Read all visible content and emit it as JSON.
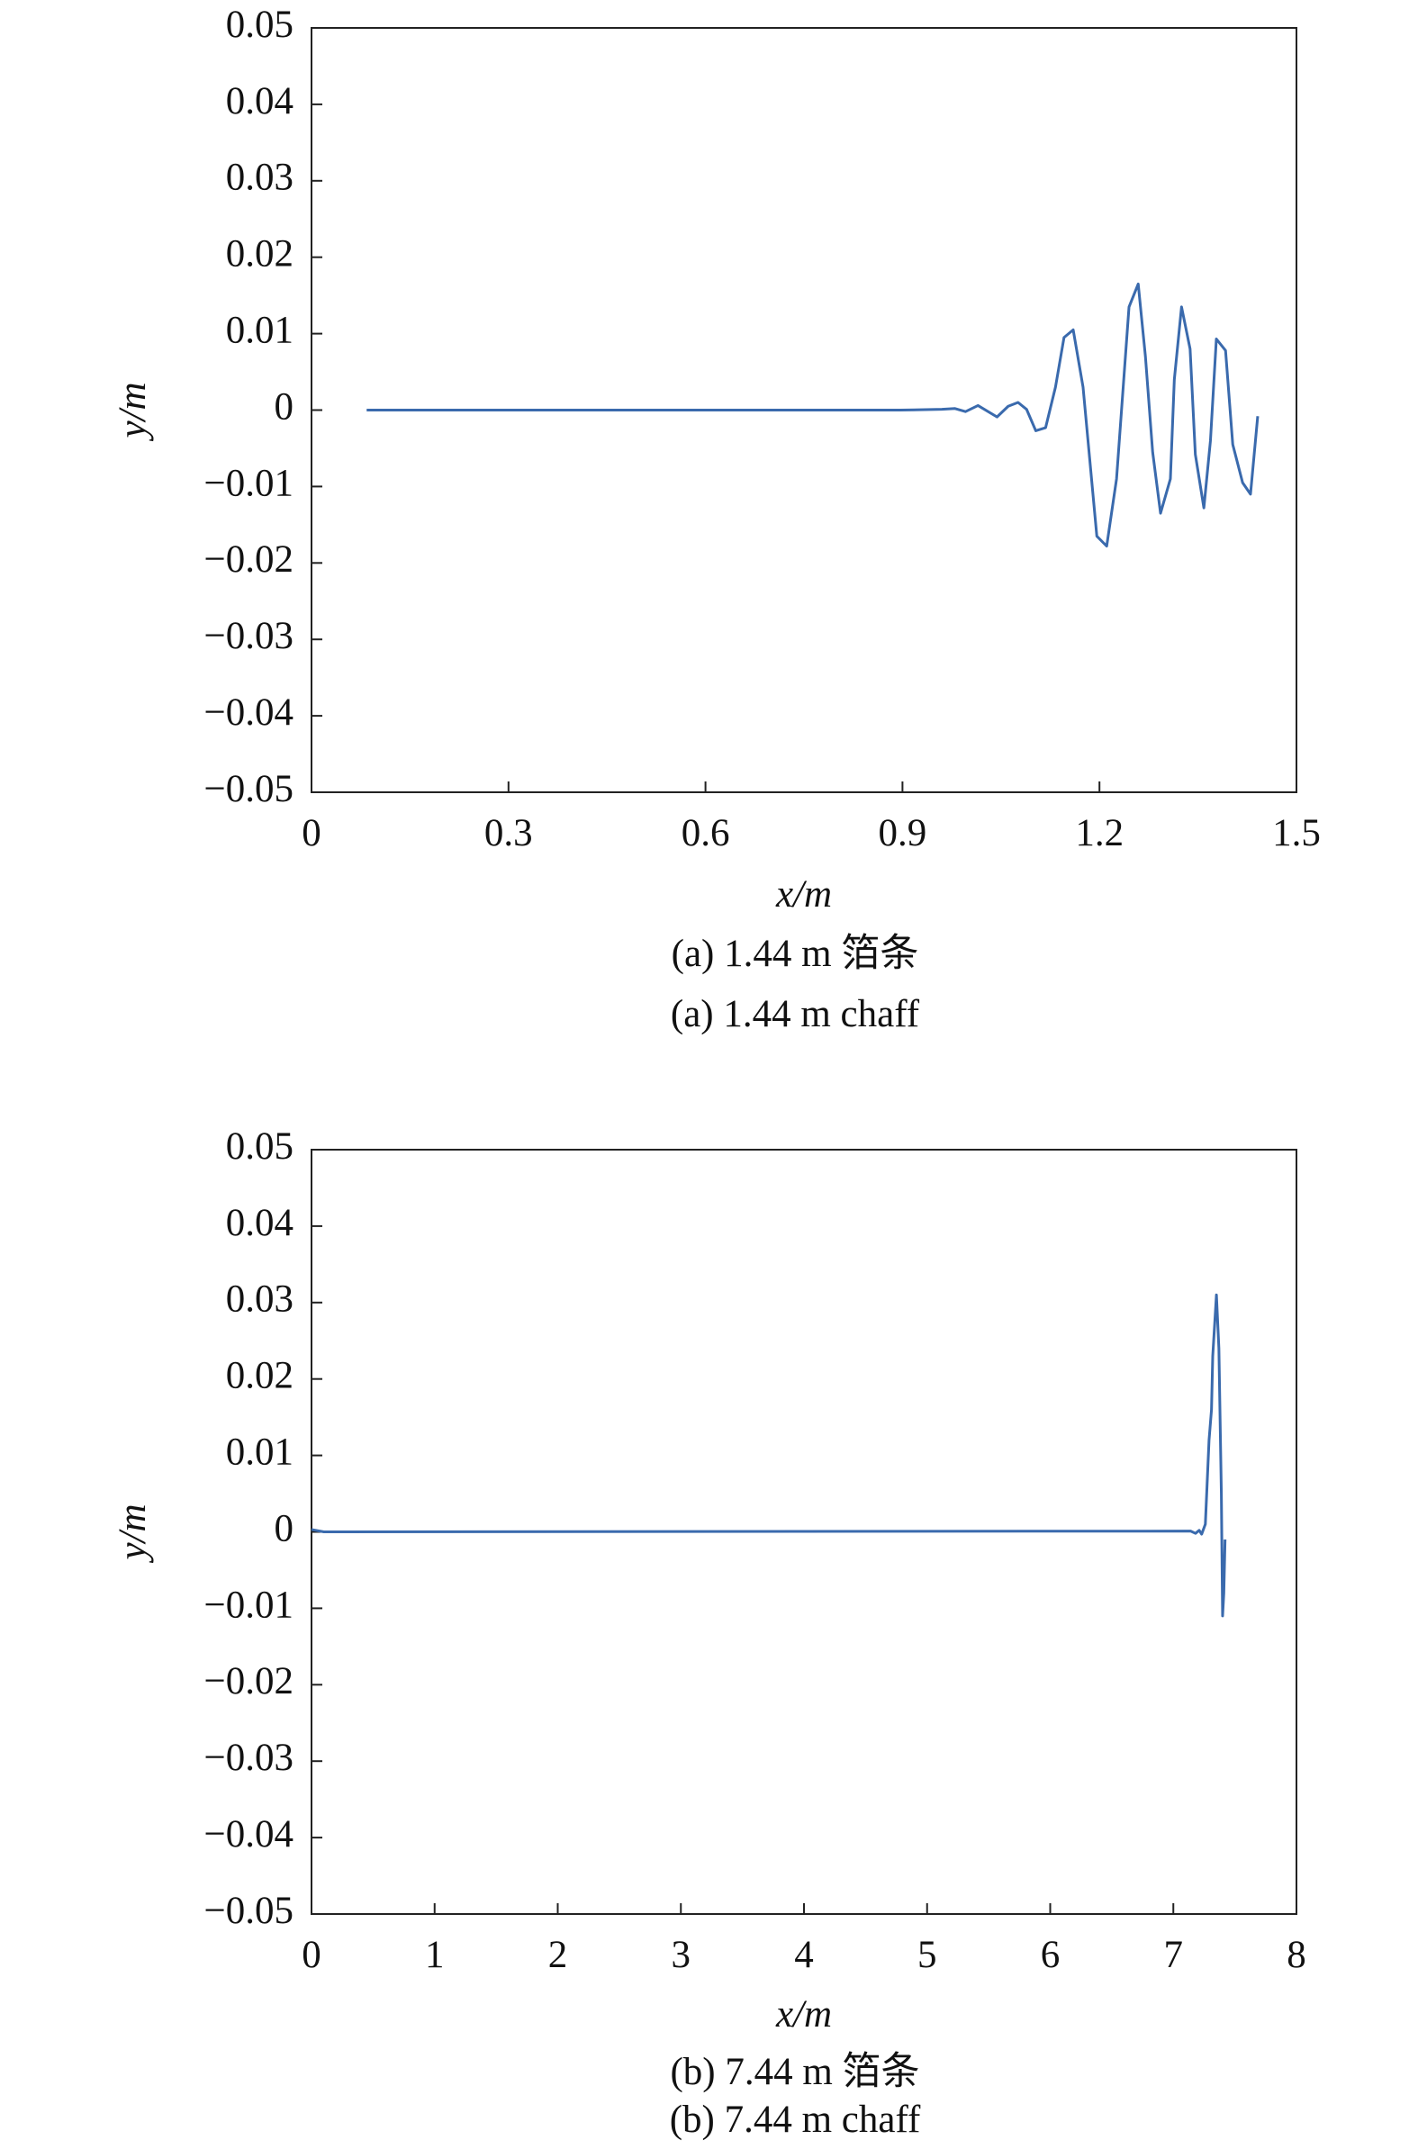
{
  "chart_data": [
    {
      "type": "line",
      "x_label": "x/m",
      "y_label": "y/m",
      "captions": [
        "(a) 1.44 m 箔条",
        "(a) 1.44 m chaff"
      ],
      "xlim": [
        0,
        1.5
      ],
      "xticks": [
        0,
        0.3,
        0.6,
        0.9,
        1.2,
        1.5
      ],
      "ylim": [
        -0.05,
        0.05
      ],
      "yticks": [
        {
          "value": -0.05,
          "label": "−0.05"
        },
        {
          "value": -0.04,
          "label": "−0.04"
        },
        {
          "value": -0.03,
          "label": "−0.03"
        },
        {
          "value": -0.02,
          "label": "−0.02"
        },
        {
          "value": -0.01,
          "label": "−0.01"
        },
        0,
        0.01,
        0.02,
        0.03,
        0.04,
        0.05
      ],
      "series": [
        {
          "color": "#3a6aad",
          "x": [
            0.084,
            0.897,
            0.96,
            0.98,
            0.996,
            1.015,
            1.044,
            1.061,
            1.076,
            1.089,
            1.103,
            1.118,
            1.133,
            1.146,
            1.16,
            1.175,
            1.196,
            1.211,
            1.226,
            1.245,
            1.259,
            1.27,
            1.281,
            1.293,
            1.308,
            1.314,
            1.325,
            1.338,
            1.346,
            1.359,
            1.369,
            1.378,
            1.392,
            1.403,
            1.418,
            1.43,
            1.441
          ],
          "values": [
            0,
            0,
            0.0001,
            0.0002,
            -0.0002,
            0.0006,
            -0.0009,
            0.0005,
            0.001,
            0.0001,
            -0.0027,
            -0.0023,
            0.003,
            0.0095,
            0.0105,
            0.003,
            -0.0165,
            -0.0178,
            -0.009,
            0.0135,
            0.0165,
            0.007,
            -0.0055,
            -0.0135,
            -0.009,
            0.004,
            0.0135,
            0.008,
            -0.0058,
            -0.0128,
            -0.004,
            0.0093,
            0.0078,
            -0.0045,
            -0.0095,
            -0.011,
            -0.0008
          ]
        }
      ]
    },
    {
      "type": "line",
      "x_label": "x/m",
      "y_label": "y/m",
      "captions": [
        "(b) 7.44 m 箔条",
        "(b) 7.44 m chaff"
      ],
      "xlim": [
        0,
        8
      ],
      "xticks": [
        0,
        1,
        2,
        3,
        4,
        5,
        6,
        7,
        8
      ],
      "ylim": [
        -0.05,
        0.05
      ],
      "yticks": [
        {
          "value": -0.05,
          "label": "−0.05"
        },
        {
          "value": -0.04,
          "label": "−0.04"
        },
        {
          "value": -0.03,
          "label": "−0.03"
        },
        {
          "value": -0.02,
          "label": "−0.02"
        },
        {
          "value": -0.01,
          "label": "−0.01"
        },
        0,
        0.01,
        0.02,
        0.03,
        0.04,
        0.05
      ],
      "series": [
        {
          "color": "#3a6aad",
          "x": [
            0,
            0.1,
            7.14,
            7.18,
            7.21,
            7.23,
            7.26,
            7.29,
            7.31,
            7.32,
            7.35,
            7.37,
            7.39,
            7.4,
            7.41,
            7.42
          ],
          "values": [
            0.0003,
            0,
            0.0001,
            -0.0002,
            0.0002,
            -0.0003,
            0.001,
            0.012,
            0.016,
            0.023,
            0.031,
            0.024,
            0.005,
            -0.011,
            -0.008,
            -0.001
          ]
        }
      ]
    }
  ]
}
